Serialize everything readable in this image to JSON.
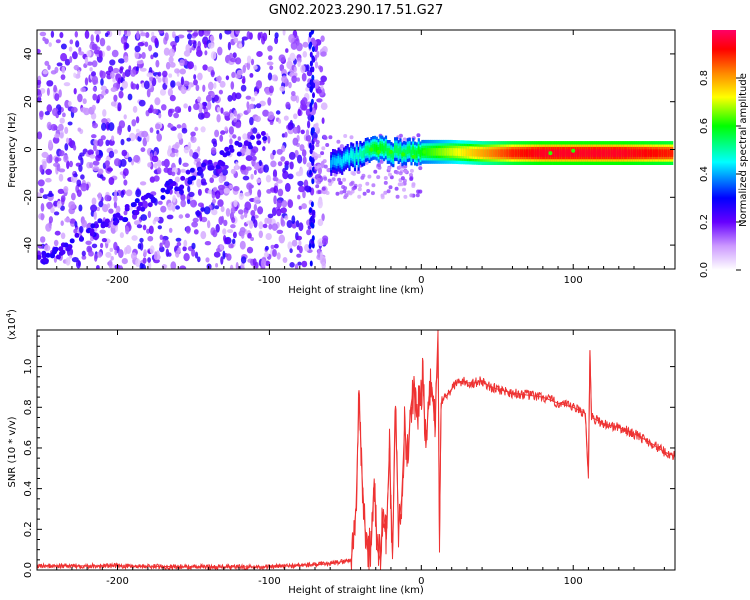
{
  "title": "GN02.2023.290.17.51.G27",
  "chart_data": [
    {
      "type": "heatmap",
      "name": "spectrogram",
      "xlabel": "Height of straight line (km)",
      "ylabel": "Frequency (Hz)",
      "xlim": [
        -253,
        167
      ],
      "ylim": [
        -50,
        50
      ],
      "xticks": [
        -200,
        -100,
        0,
        100
      ],
      "yticks": [
        -40,
        -20,
        0,
        20,
        40
      ],
      "colorbar": {
        "label": "Normalized spectral amplitude",
        "range": [
          0,
          1
        ],
        "ticks": [
          "0.0",
          "0.2",
          "0.4",
          "0.6",
          "0.8"
        ],
        "colors": [
          "#ffffff",
          "#cc99ff",
          "#6600ff",
          "#0000ff",
          "#00ffff",
          "#00ff00",
          "#ffff00",
          "#ff8800",
          "#ff0000",
          "#ff0066"
        ]
      },
      "signal_track": [
        {
          "x": -60,
          "y": -6,
          "amp": 0.35
        },
        {
          "x": -50,
          "y": -4,
          "amp": 0.4
        },
        {
          "x": -40,
          "y": -2,
          "amp": 0.45
        },
        {
          "x": -30,
          "y": 0,
          "amp": 0.55
        },
        {
          "x": -20,
          "y": -1,
          "amp": 0.5
        },
        {
          "x": -10,
          "y": -1,
          "amp": 0.5
        },
        {
          "x": 0,
          "y": -1,
          "amp": 0.55
        },
        {
          "x": 20,
          "y": -1,
          "amp": 0.65
        },
        {
          "x": 40,
          "y": -1.5,
          "amp": 0.75
        },
        {
          "x": 60,
          "y": -1.5,
          "amp": 0.85
        },
        {
          "x": 80,
          "y": -1.5,
          "amp": 0.9
        },
        {
          "x": 100,
          "y": -1.5,
          "amp": 0.9
        },
        {
          "x": 130,
          "y": -1.5,
          "amp": 0.9
        },
        {
          "x": 165,
          "y": -1.5,
          "amp": 0.85
        }
      ]
    },
    {
      "type": "line",
      "name": "snr",
      "xlabel": "Height of straight line (km)",
      "ylabel": "SNR (10 * v/v)",
      "y_multiplier": "(x10",
      "y_multiplier_exp": "4",
      "xlim": [
        -253,
        167
      ],
      "ylim": [
        0,
        1.18
      ],
      "xticks": [
        -200,
        -100,
        0,
        100
      ],
      "yticks": [
        "0.0",
        "0.2",
        "0.4",
        "0.6",
        "0.8",
        "1.0"
      ],
      "color": "#ee3333",
      "x": [
        -253,
        -200,
        -150,
        -100,
        -60,
        -46,
        -43,
        -41,
        -39,
        -37,
        -35,
        -33,
        -31,
        -29,
        -27,
        -25,
        -23,
        -21,
        -19,
        -17,
        -15,
        -13,
        -11,
        -9,
        -7,
        -5,
        -3,
        -1,
        1,
        3,
        5,
        7,
        9,
        11,
        12,
        13,
        15,
        17,
        19,
        21,
        23,
        25,
        27,
        30,
        35,
        40,
        45,
        50,
        60,
        70,
        80,
        90,
        100,
        105,
        108,
        110,
        111,
        112,
        115,
        120,
        130,
        140,
        150,
        160,
        167
      ],
      "y": [
        0.02,
        0.02,
        0.015,
        0.015,
        0.03,
        0.05,
        0.3,
        0.85,
        0.45,
        0.2,
        0.08,
        0.12,
        0.45,
        0.1,
        0.05,
        0.3,
        0.15,
        0.6,
        0.08,
        0.8,
        0.2,
        0.35,
        0.7,
        0.55,
        0.8,
        0.9,
        0.75,
        0.82,
        0.95,
        0.6,
        0.85,
        0.9,
        0.7,
        1.18,
        0.15,
        0.82,
        0.85,
        0.86,
        0.88,
        0.9,
        0.92,
        0.92,
        0.93,
        0.92,
        0.92,
        0.93,
        0.9,
        0.89,
        0.87,
        0.86,
        0.85,
        0.82,
        0.8,
        0.78,
        0.77,
        0.45,
        1.08,
        0.75,
        0.74,
        0.72,
        0.7,
        0.67,
        0.63,
        0.58,
        0.56
      ]
    }
  ]
}
